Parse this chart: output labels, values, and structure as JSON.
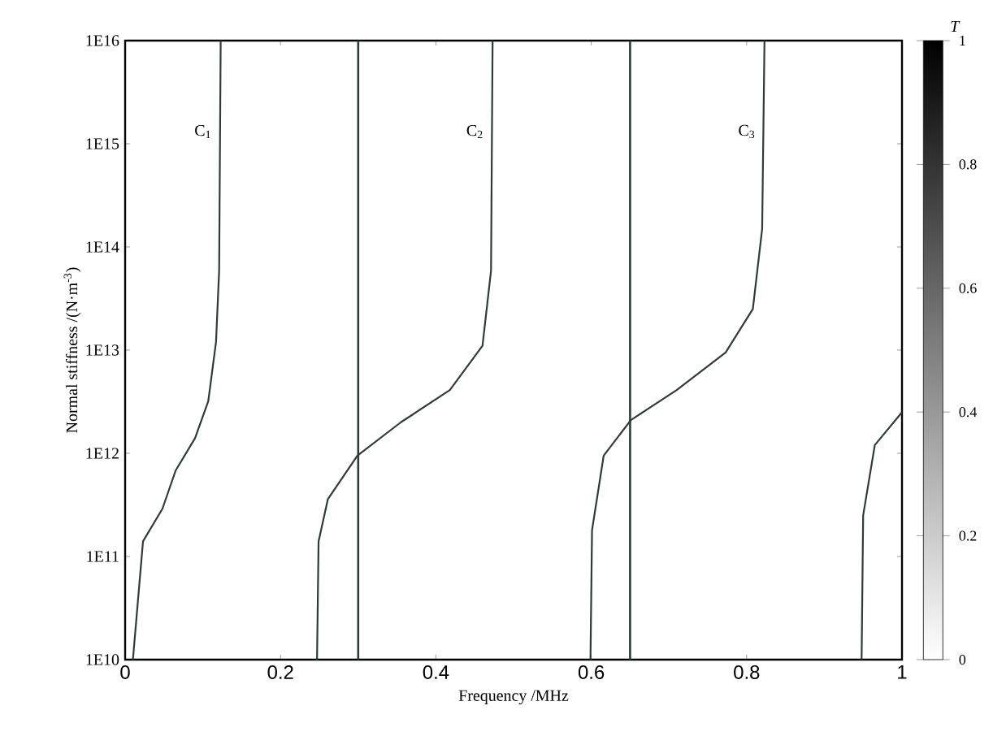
{
  "chart_data": {
    "type": "line",
    "xlabel": "Frequency /MHz",
    "ylabel": "Normal stiffness /(N·m$^{-3}$)",
    "log": "y",
    "grid": false,
    "marker": "none",
    "line_style": "solid",
    "xlim": [
      0,
      1
    ],
    "xticks": [
      0,
      0.2,
      0.4,
      0.6,
      0.8,
      1
    ],
    "ylim": [
      10000000000.0,
      1e+16
    ],
    "yticks": [
      {
        "value": 10000000000.0,
        "label": "1E10"
      },
      {
        "value": 100000000000.0,
        "label": "1E11"
      },
      {
        "value": 1000000000000.0,
        "label": "1E12"
      },
      {
        "value": 10000000000000.0,
        "label": "1E13"
      },
      {
        "value": 100000000000000.0,
        "label": "1E14"
      },
      {
        "value": 1000000000000000.0,
        "label": "1E15"
      },
      {
        "value": 1e+16,
        "label": "1E16"
      }
    ],
    "clabel": "T",
    "clim": [
      0,
      1
    ],
    "cticks": [
      0,
      0.2,
      0.4,
      0.6,
      0.8,
      1
    ],
    "series": [
      {
        "color": "#2f3b35",
        "x": [
          0.01,
          0.023,
          0.048,
          0.065,
          0.09,
          0.107,
          0.117,
          0.121,
          0.123
        ],
        "values": [
          10000000000.0,
          140000000000.0,
          290000000000.0,
          680000000000.0,
          1400000000000.0,
          3200000000000.0,
          12000000000000.0,
          59000000000000.0,
          1e+16
        ]
      },
      {
        "color": "#2f3b35",
        "x": [
          0.247,
          0.249,
          0.261,
          0.299,
          0.355,
          0.418,
          0.46,
          0.471,
          0.473
        ],
        "values": [
          10000000000.0,
          140000000000.0,
          360000000000.0,
          950000000000.0,
          2000000000000.0,
          4100000000000.0,
          11000000000000.0,
          59000000000000.0,
          1e+16
        ]
      },
      {
        "color": "#2f3b35",
        "x": [
          0.599,
          0.601,
          0.616,
          0.651,
          0.71,
          0.773,
          0.808,
          0.82,
          0.823
        ],
        "values": [
          10000000000.0,
          180000000000.0,
          950000000000.0,
          2100000000000.0,
          4100000000000.0,
          9500000000000.0,
          25000000000000.0,
          150000000000000.0,
          1e+16
        ]
      },
      {
        "color": "#2f3b35",
        "x": [
          0.948,
          0.95,
          0.965,
          1
        ],
        "values": [
          10000000000.0,
          250000000000.0,
          1200000000000.0,
          2500000000000.0
        ]
      }
    ],
    "ref_lines": [
      {
        "axis": "x",
        "value": 0.3,
        "color": "#2f3b35"
      },
      {
        "axis": "x",
        "value": 0.65,
        "color": "#2f3b35"
      }
    ],
    "annotations": [
      "C$_{1}$",
      "C$_{2}$",
      "C$_{3}$"
    ]
  }
}
